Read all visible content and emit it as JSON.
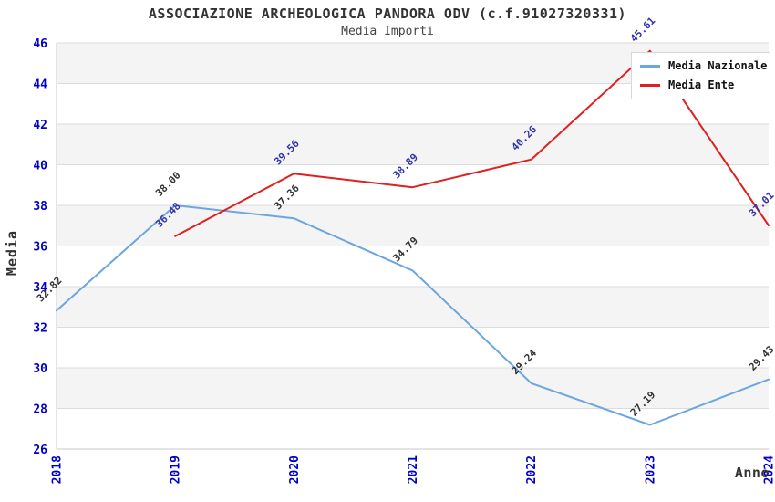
{
  "header": {
    "title": "ASSOCIAZIONE ARCHEOLOGICA PANDORA ODV (c.f.91027320331)",
    "subtitle": "Media Importi"
  },
  "legend": {
    "items": [
      {
        "label": "Media Nazionale",
        "color": "#6CA6E0"
      },
      {
        "label": "Media Ente",
        "color": "#E01F1F"
      }
    ]
  },
  "axes": {
    "ylabel": "Media",
    "xlabel": "Anno"
  },
  "chart_data": {
    "type": "line",
    "title": "ASSOCIAZIONE ARCHEOLOGICA PANDORA ODV (c.f.91027320331)",
    "subtitle": "Media Importi",
    "xlabel": "Anno",
    "ylabel": "Media",
    "x": [
      "2018",
      "2019",
      "2020",
      "2021",
      "2022",
      "2023",
      "2024"
    ],
    "series": [
      {
        "name": "Media Nazionale",
        "color": "#6CA6E0",
        "label_color": "#333333",
        "values": [
          32.82,
          38.0,
          37.36,
          34.79,
          29.24,
          27.19,
          29.43
        ]
      },
      {
        "name": "Media Ente",
        "color": "#E01F1F",
        "label_color": "#3333AA",
        "values": [
          null,
          36.48,
          39.56,
          38.89,
          40.26,
          45.61,
          37.01
        ]
      }
    ],
    "ylim": [
      26,
      46
    ],
    "ytick_step": 2,
    "grid": "horizontal-bands",
    "legend_position": "top-right",
    "colors": {
      "band": "#F4F4F4",
      "gridline": "#DCDCDC",
      "axis": "#C8C8C8",
      "tick_label": "#0000CC",
      "title": "#333333"
    }
  }
}
